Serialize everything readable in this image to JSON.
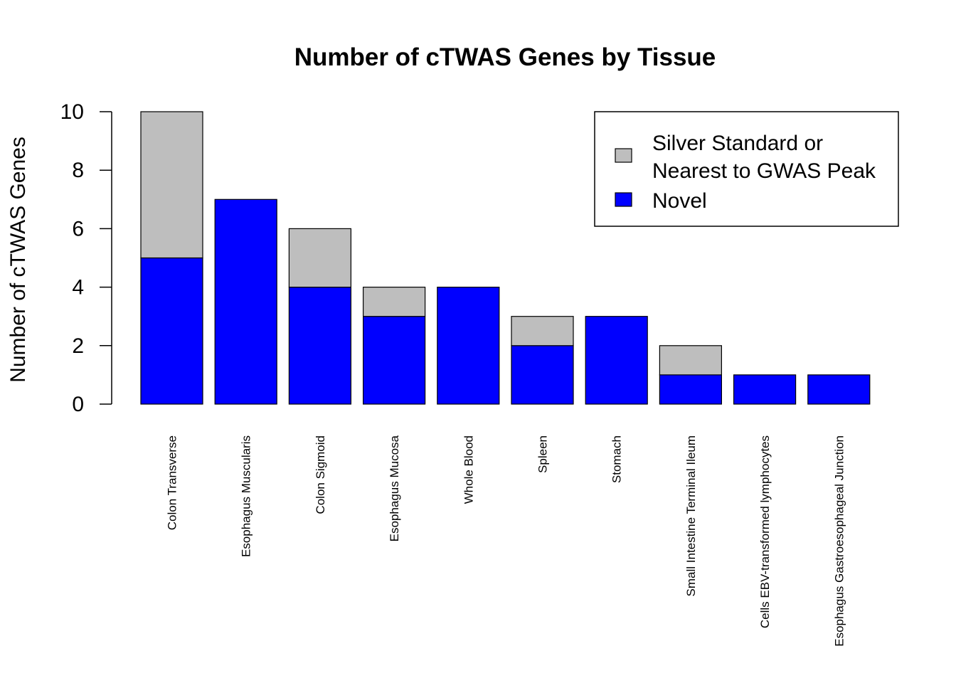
{
  "chart_data": {
    "type": "bar",
    "stacked": true,
    "title": "Number of cTWAS Genes by Tissue",
    "xlabel": "",
    "ylabel": "Number of cTWAS Genes",
    "ylim": [
      0,
      10
    ],
    "yticks": [
      0,
      2,
      4,
      6,
      8,
      10
    ],
    "grid": false,
    "legend_position": "top-right",
    "categories": [
      "Colon Transverse",
      "Esophagus Muscularis",
      "Colon Sigmoid",
      "Esophagus Mucosa",
      "Whole Blood",
      "Spleen",
      "Stomach",
      "Small Intestine Terminal Ileum",
      "Cells EBV-transformed lymphocytes",
      "Esophagus Gastroesophageal Junction"
    ],
    "series": [
      {
        "name": "Novel",
        "color": "#0000FF",
        "values": [
          5,
          7,
          4,
          3,
          4,
          2,
          3,
          1,
          1,
          1
        ]
      },
      {
        "name": "Silver Standard or Nearest to GWAS Peak",
        "legend_lines": [
          "Silver Standard or",
          "Nearest to GWAS Peak"
        ],
        "color": "#BEBEBE",
        "values": [
          5,
          0,
          2,
          1,
          0,
          1,
          0,
          1,
          0,
          0
        ]
      }
    ]
  }
}
